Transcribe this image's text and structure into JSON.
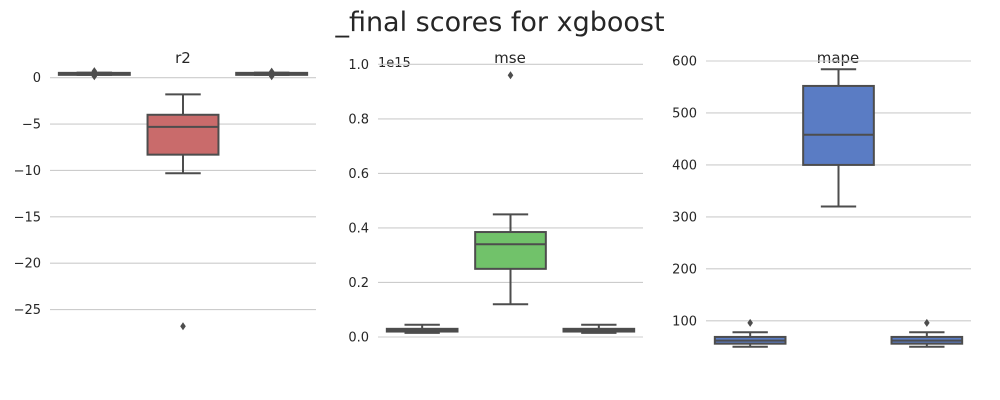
{
  "title": "_final scores for xgboost",
  "chart_data": [
    {
      "type": "box",
      "title": "r2",
      "xlabel": "",
      "ylabel": "",
      "ylim": [
        -28.5,
        3.2
      ],
      "yticks": [
        0,
        -5,
        -10,
        -15,
        -20,
        -25
      ],
      "ytick_labels": [
        "0",
        "−5",
        "−10",
        "−15",
        "−20",
        "−25"
      ],
      "grid": true,
      "color": "#c96b6b",
      "boxes": [
        {
          "q1": 0.35,
          "median": 0.45,
          "q3": 0.52,
          "whisker_low": 0.3,
          "whisker_high": 0.55,
          "outliers": [
            0.7,
            0.15
          ]
        },
        {
          "q1": -8.3,
          "median": -5.3,
          "q3": -4.0,
          "whisker_low": -10.3,
          "whisker_high": -1.8,
          "outliers": [
            -26.8
          ]
        },
        {
          "q1": 0.35,
          "median": 0.45,
          "q3": 0.52,
          "whisker_low": 0.3,
          "whisker_high": 0.55,
          "outliers": [
            0.65,
            0.15
          ]
        }
      ]
    },
    {
      "type": "box",
      "title": "mse",
      "xlabel": "",
      "ylabel": "",
      "offset_text": "1e15",
      "ylim": [
        -0.055,
        1.06
      ],
      "yticks": [
        0.0,
        0.2,
        0.4,
        0.6,
        0.8,
        1.0
      ],
      "ytick_labels": [
        "0.0",
        "0.2",
        "0.4",
        "0.6",
        "0.8",
        "1.0"
      ],
      "grid": true,
      "color": "#71c26a",
      "boxes": [
        {
          "q1": 0.02,
          "median": 0.025,
          "q3": 0.03,
          "whisker_low": 0.015,
          "whisker_high": 0.045,
          "outliers": []
        },
        {
          "q1": 0.25,
          "median": 0.34,
          "q3": 0.385,
          "whisker_low": 0.12,
          "whisker_high": 0.45,
          "outliers": [
            0.96
          ]
        },
        {
          "q1": 0.02,
          "median": 0.025,
          "q3": 0.03,
          "whisker_low": 0.015,
          "whisker_high": 0.045,
          "outliers": []
        }
      ]
    },
    {
      "type": "box",
      "title": "mape",
      "xlabel": "",
      "ylabel": "",
      "ylim": [
        40,
        625
      ],
      "yticks": [
        100,
        200,
        300,
        400,
        500,
        600
      ],
      "ytick_labels": [
        "100",
        "200",
        "300",
        "400",
        "500",
        "600"
      ],
      "grid": true,
      "color": "#5a7cc4",
      "boxes": [
        {
          "q1": 56,
          "median": 62,
          "q3": 69,
          "whisker_low": 50,
          "whisker_high": 78,
          "outliers": [
            96
          ]
        },
        {
          "q1": 400,
          "median": 458,
          "q3": 552,
          "whisker_low": 320,
          "whisker_high": 584,
          "outliers": []
        },
        {
          "q1": 56,
          "median": 62,
          "q3": 69,
          "whisker_low": 50,
          "whisker_high": 78,
          "outliers": [
            96
          ]
        }
      ]
    }
  ]
}
